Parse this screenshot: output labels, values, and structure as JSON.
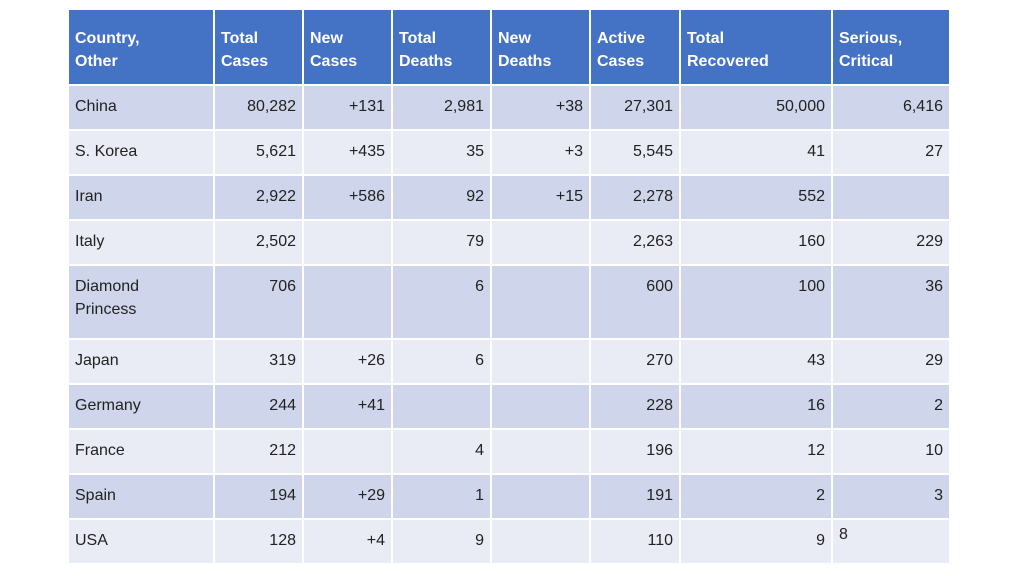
{
  "headers": [
    [
      "Country,",
      "Other"
    ],
    [
      "Total",
      "Cases"
    ],
    [
      "New",
      "Cases"
    ],
    [
      "Total",
      "Deaths"
    ],
    [
      "New",
      "Deaths"
    ],
    [
      "Active",
      "Cases"
    ],
    [
      "Total",
      "Recovered"
    ],
    [
      "Serious,",
      "Critical"
    ]
  ],
  "rows": [
    {
      "country": [
        "China"
      ],
      "total_cases": "80,282",
      "new_cases": "+131",
      "total_deaths": "2,981",
      "new_deaths": "+38",
      "active_cases": "27,301",
      "total_recovered": "50,000",
      "serious_critical": "6,416"
    },
    {
      "country": [
        "S. Korea"
      ],
      "total_cases": "5,621",
      "new_cases": "+435",
      "total_deaths": "35",
      "new_deaths": "+3",
      "active_cases": "5,545",
      "total_recovered": "41",
      "serious_critical": "27"
    },
    {
      "country": [
        "Iran"
      ],
      "total_cases": "2,922",
      "new_cases": "+586",
      "total_deaths": "92",
      "new_deaths": "+15",
      "active_cases": "2,278",
      "total_recovered": "552",
      "serious_critical": ""
    },
    {
      "country": [
        "Italy"
      ],
      "total_cases": "2,502",
      "new_cases": "",
      "total_deaths": "79",
      "new_deaths": "",
      "active_cases": "2,263",
      "total_recovered": "160",
      "serious_critical": "229"
    },
    {
      "country": [
        "Diamond",
        "Princess"
      ],
      "total_cases": "706",
      "new_cases": "",
      "total_deaths": "6",
      "new_deaths": "",
      "active_cases": "600",
      "total_recovered": "100",
      "serious_critical": "36"
    },
    {
      "country": [
        "Japan"
      ],
      "total_cases": "319",
      "new_cases": "+26",
      "total_deaths": "6",
      "new_deaths": "",
      "active_cases": "270",
      "total_recovered": "43",
      "serious_critical": "29"
    },
    {
      "country": [
        "Germany"
      ],
      "total_cases": "244",
      "new_cases": "+41",
      "total_deaths": "",
      "new_deaths": "",
      "active_cases": "228",
      "total_recovered": "16",
      "serious_critical": "2"
    },
    {
      "country": [
        "France"
      ],
      "total_cases": "212",
      "new_cases": "",
      "total_deaths": "4",
      "new_deaths": "",
      "active_cases": "196",
      "total_recovered": "12",
      "serious_critical": "10"
    },
    {
      "country": [
        "Spain"
      ],
      "total_cases": "194",
      "new_cases": "+29",
      "total_deaths": "1",
      "new_deaths": "",
      "active_cases": "191",
      "total_recovered": "2",
      "serious_critical": "3"
    },
    {
      "country": [
        "USA"
      ],
      "total_cases": "128",
      "new_cases": "+4",
      "total_deaths": "9",
      "new_deaths": "",
      "active_cases": "110",
      "total_recovered": "9",
      "serious_critical": ""
    }
  ],
  "stray_text": "8",
  "colors": {
    "header_bg": "#4472c4",
    "row_odd": "#cfd5ea",
    "row_even": "#e9ebf5"
  }
}
